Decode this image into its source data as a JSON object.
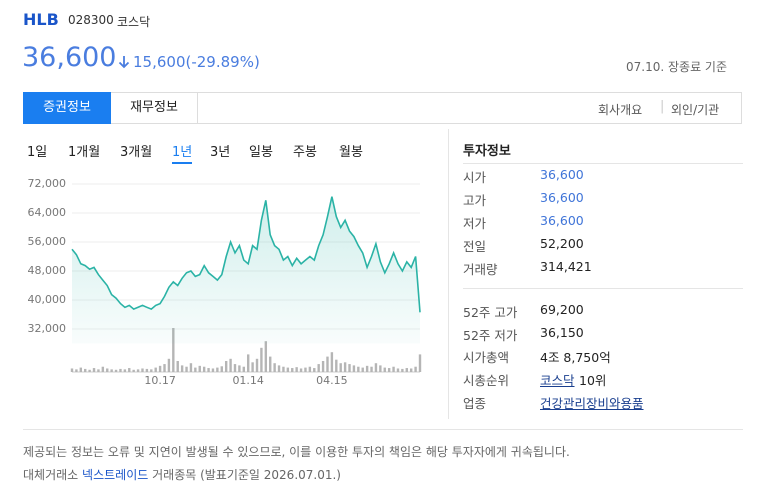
{
  "header": {
    "name": "HLB",
    "code": "028300",
    "market": "코스닥",
    "price": "36,600",
    "change": "15,600(-29.89%)",
    "as_of": "07.10. 장종료 기준"
  },
  "tabs": {
    "items": [
      "증권정보",
      "재무정보"
    ],
    "links": [
      "회사개요",
      "외인/기관"
    ]
  },
  "periods": {
    "items": [
      "1일",
      "1개월",
      "3개월",
      "1년",
      "3년",
      "일봉",
      "주봉",
      "월봉"
    ],
    "active": 3
  },
  "chart_data": {
    "type": "line",
    "categories": [
      null,
      null,
      null,
      null,
      null,
      null,
      null,
      null,
      null,
      null,
      null,
      null,
      null,
      null,
      null,
      null,
      null,
      null,
      null,
      null,
      "10.17",
      null,
      null,
      null,
      null,
      null,
      null,
      null,
      null,
      null,
      null,
      null,
      null,
      null,
      null,
      null,
      null,
      null,
      null,
      null,
      "01.14",
      null,
      null,
      null,
      null,
      null,
      null,
      null,
      null,
      null,
      null,
      null,
      null,
      null,
      null,
      null,
      null,
      null,
      null,
      "04.15",
      null,
      null,
      null,
      null,
      null,
      null,
      null,
      null,
      null,
      null,
      null,
      null,
      null,
      null,
      null,
      null,
      null,
      null,
      null,
      null
    ],
    "series": [
      {
        "color": "#2bb3a6",
        "values": [
          54000,
          52500,
          50000,
          49500,
          48500,
          49000,
          47000,
          45500,
          44000,
          41500,
          40500,
          39000,
          38000,
          38500,
          37500,
          38000,
          38500,
          38000,
          37500,
          38500,
          39000,
          41000,
          43500,
          45000,
          44000,
          46000,
          47500,
          48000,
          46500,
          47000,
          49500,
          47500,
          46500,
          45500,
          47000,
          52000,
          56000,
          53000,
          55000,
          51000,
          50000,
          55000,
          54000,
          62000,
          67500,
          58000,
          55000,
          54000,
          51000,
          52000,
          49500,
          51500,
          50000,
          51000,
          52000,
          51000,
          55000,
          58000,
          63000,
          68500,
          63000,
          60000,
          62000,
          59000,
          57500,
          55000,
          53000,
          49000,
          52000,
          55500,
          50500,
          47500,
          50000,
          53000,
          50000,
          48000,
          50500,
          49000,
          52000,
          36600
        ]
      }
    ],
    "volume": {
      "color": "#b5b5b5",
      "values": [
        8,
        6,
        10,
        7,
        5,
        9,
        6,
        12,
        8,
        6,
        5,
        7,
        6,
        9,
        5,
        6,
        8,
        7,
        6,
        10,
        14,
        18,
        30,
        100,
        25,
        15,
        12,
        20,
        10,
        14,
        12,
        9,
        8,
        10,
        13,
        25,
        30,
        18,
        15,
        12,
        40,
        22,
        30,
        55,
        70,
        35,
        20,
        15,
        12,
        10,
        9,
        11,
        8,
        10,
        12,
        9,
        18,
        25,
        35,
        45,
        28,
        20,
        22,
        18,
        15,
        12,
        10,
        14,
        12,
        20,
        15,
        10,
        9,
        12,
        8,
        7,
        9,
        8,
        12,
        40
      ]
    },
    "ylim": [
      28000,
      76000
    ],
    "yticks": [
      {
        "value": 32000,
        "label": "32,000"
      },
      {
        "value": 40000,
        "label": "40,000"
      },
      {
        "value": 48000,
        "label": "48,000"
      },
      {
        "value": 56000,
        "label": "56,000"
      },
      {
        "value": 64000,
        "label": "64,000"
      },
      {
        "value": 72000,
        "label": "72,000"
      }
    ],
    "grid": true
  },
  "invest": {
    "title": "투자정보",
    "rows": [
      [
        "시가",
        "36,600"
      ],
      [
        "고가",
        "36,600"
      ],
      [
        "저가",
        "36,600"
      ],
      [
        "전일",
        "52,200"
      ],
      [
        "거래량",
        "314,421"
      ]
    ],
    "rows2": [
      [
        "52주 고가",
        "69,200"
      ],
      [
        "52주 저가",
        "36,150"
      ],
      [
        "시가총액",
        "4조 8,750억"
      ],
      [
        "시총순위",
        "코스닥",
        "10위"
      ],
      [
        "업종",
        "건강관리장비와용품"
      ]
    ]
  },
  "footer": {
    "notice": "제공되는 정보는 오류 및 지연이 발생될 수 있으므로, 이를 이용한 투자의 책임은 해당 투자자에게 귀속됩니다.",
    "source_prefix": "대체거래소",
    "source_link": "넥스트레이드",
    "source_suffix": "거래종목 (발표기준일 2026.07.01.)"
  }
}
